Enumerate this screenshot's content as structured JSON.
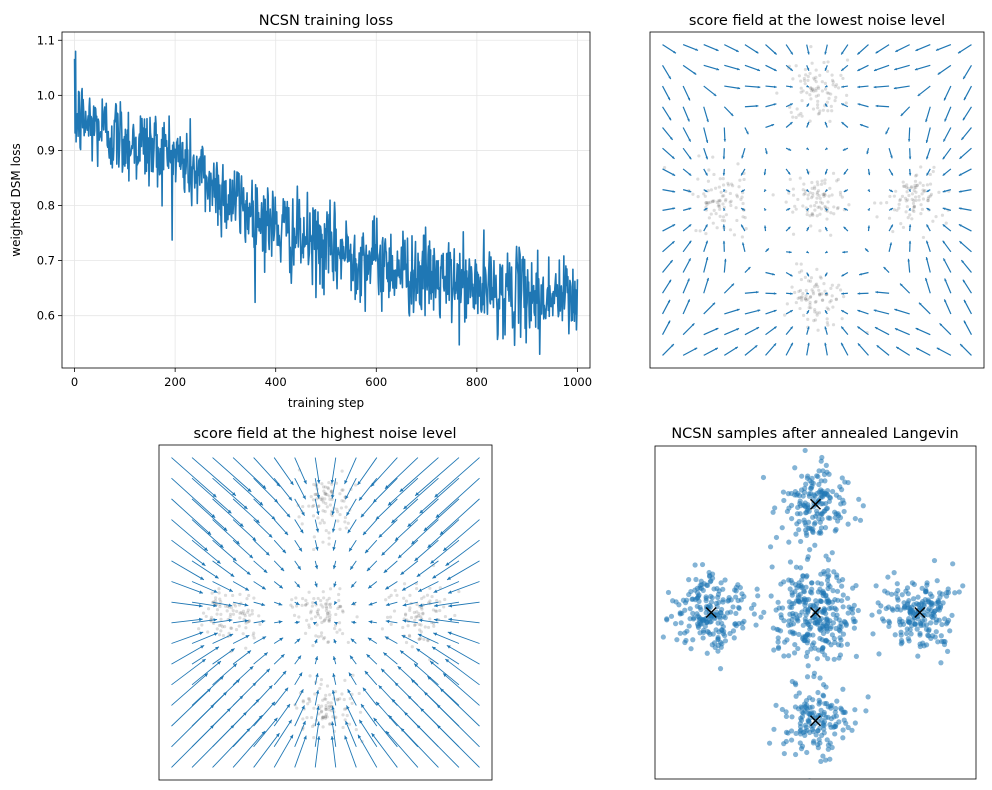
{
  "colors": {
    "series": "#1f77b4",
    "points": "#1f77b4",
    "grid": "#e6e6e6",
    "data_points": "#444444",
    "marker": "#000000"
  },
  "chart_data": [
    {
      "type": "line",
      "title": "NCSN training loss",
      "xlabel": "training step",
      "ylabel": "weighted DSM loss",
      "xlim": [
        -25,
        1025
      ],
      "ylim": [
        0.505,
        1.115
      ],
      "xticks": [
        0,
        200,
        400,
        600,
        800,
        1000
      ],
      "xtick_labels": [
        "0",
        "200",
        "400",
        "600",
        "800",
        "1000"
      ],
      "yticks": [
        0.6,
        0.7,
        0.8,
        0.9,
        1.0,
        1.1
      ],
      "ytick_labels": [
        "0.6",
        "0.7",
        "0.8",
        "0.9",
        "1.0",
        "1.1"
      ],
      "grid": true,
      "series": [
        {
          "name": "loss",
          "num_steps": 1000,
          "trend_anchors": [
            [
              0,
              0.96
            ],
            [
              100,
              0.92
            ],
            [
              200,
              0.89
            ],
            [
              300,
              0.82
            ],
            [
              400,
              0.76
            ],
            [
              500,
              0.72
            ],
            [
              600,
              0.7
            ],
            [
              700,
              0.67
            ],
            [
              800,
              0.65
            ],
            [
              900,
              0.64
            ],
            [
              1000,
              0.63
            ]
          ],
          "noise_amplitude": 0.045,
          "max": 1.08,
          "min": 0.53
        }
      ]
    },
    {
      "type": "quiver",
      "title": "score field at the lowest noise level",
      "xlim": [
        -4,
        4
      ],
      "ylim": [
        -4,
        4
      ],
      "grid_size": 16,
      "data_clusters": [
        [
          0,
          2.6
        ],
        [
          -2.3,
          0
        ],
        [
          0,
          0
        ],
        [
          2.3,
          0
        ],
        [
          0,
          -2.3
        ]
      ],
      "points_per_cluster": 90,
      "cluster_std": 0.35,
      "axes_visible": false
    },
    {
      "type": "quiver",
      "title": "score field at the highest noise level",
      "xlim": [
        -4,
        4
      ],
      "ylim": [
        -4,
        4
      ],
      "grid_size": 16,
      "data_clusters": [
        [
          0,
          2.6
        ],
        [
          -2.3,
          0
        ],
        [
          0,
          0
        ],
        [
          2.3,
          0
        ],
        [
          0,
          -2.3
        ]
      ],
      "points_per_cluster": 90,
      "cluster_std": 0.35,
      "axes_visible": false
    },
    {
      "type": "scatter",
      "title": "NCSN samples after annealed Langevin",
      "xlim": [
        -4,
        4
      ],
      "ylim": [
        -4,
        4
      ],
      "centers": [
        [
          0,
          2.6
        ],
        [
          -2.6,
          0
        ],
        [
          0,
          0
        ],
        [
          2.6,
          0
        ],
        [
          0,
          -2.6
        ]
      ],
      "points_per_center": [
        170,
        200,
        300,
        200,
        160
      ],
      "sample_std": [
        0.45,
        0.45,
        0.55,
        0.45,
        0.45
      ],
      "center_marker": "x",
      "axes_visible": false
    }
  ]
}
